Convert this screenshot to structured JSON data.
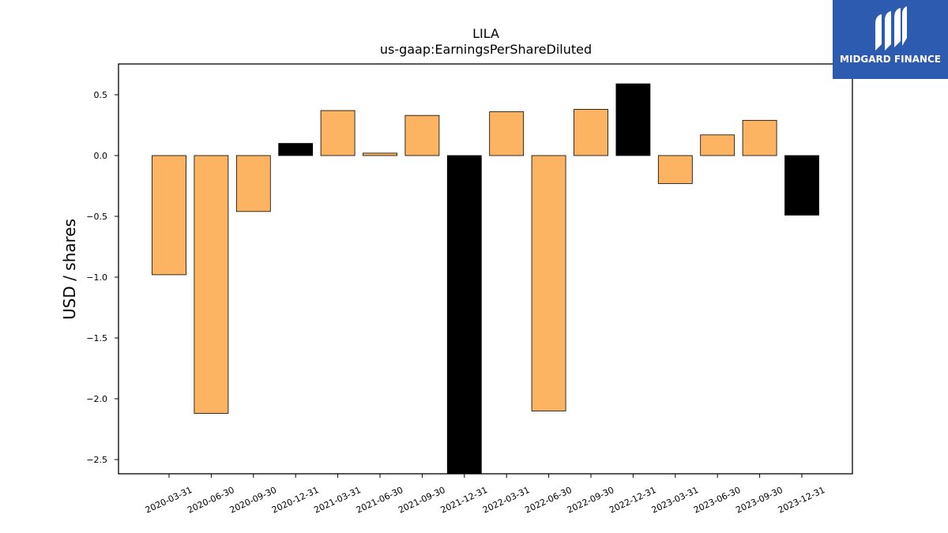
{
  "chart_data": {
    "type": "bar",
    "title": "LILA",
    "subtitle": "us-gaap:EarningsPerShareDiluted",
    "xlabel": "",
    "ylabel": "USD / shares",
    "ylim": [
      -2.62,
      0.75
    ],
    "yticks": [
      0.5,
      0.0,
      -0.5,
      -1.0,
      -1.5,
      -2.0,
      -2.5
    ],
    "ytick_labels": [
      "0.5",
      "0.0",
      "−0.5",
      "−1.0",
      "−1.5",
      "−2.0",
      "−2.5"
    ],
    "grid": false,
    "categories": [
      "2020-03-31",
      "2020-06-30",
      "2020-09-30",
      "2020-12-31",
      "2021-03-31",
      "2021-06-30",
      "2021-09-30",
      "2021-12-31",
      "2022-03-31",
      "2022-06-30",
      "2022-09-30",
      "2022-12-31",
      "2023-03-31",
      "2023-06-30",
      "2023-09-30",
      "2023-12-31"
    ],
    "values": [
      -0.98,
      -2.12,
      -0.46,
      0.1,
      0.37,
      0.02,
      0.33,
      -2.62,
      0.36,
      -2.1,
      0.38,
      0.59,
      -0.23,
      0.17,
      0.29,
      -0.49
    ],
    "bar_colors": [
      "#fdb462",
      "#fdb462",
      "#fdb462",
      "#000000",
      "#fdb462",
      "#fdb462",
      "#fdb462",
      "#000000",
      "#fdb462",
      "#fdb462",
      "#fdb462",
      "#000000",
      "#fdb462",
      "#fdb462",
      "#fdb462",
      "#000000"
    ]
  },
  "logo": {
    "text": "MIDGARD FINANCE",
    "background": "#2c5bb0"
  }
}
